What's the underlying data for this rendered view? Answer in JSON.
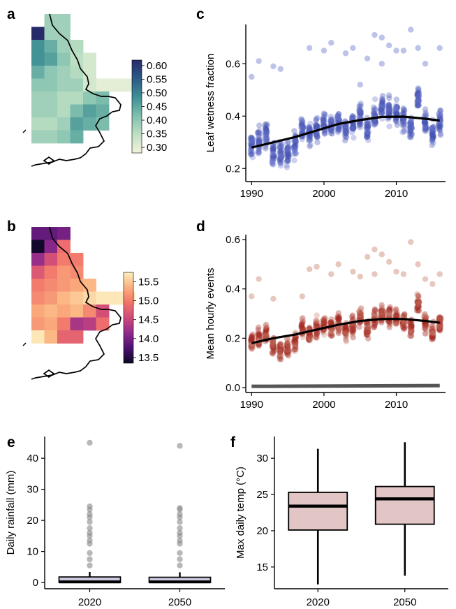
{
  "panel_labels": {
    "a": "a",
    "b": "b",
    "c": "c",
    "d": "d",
    "e": "e",
    "f": "f"
  },
  "colors": {
    "leaf_wetness_points": "#6f7bd0",
    "leaf_wetness_dense": "#4452b3",
    "hourly_points": "#c9846f",
    "hourly_dense": "#a3261f",
    "trend": "#000000",
    "baseline": "#555555",
    "rain_box": "#c9c8df",
    "temp_box": "#e2c6c6",
    "map_outline": "#000000"
  },
  "chart_data": [
    {
      "id": "a",
      "type": "heatmap",
      "title": "",
      "colorbar": {
        "ticks": [
          "0.60",
          "0.55",
          "0.50",
          "0.45",
          "0.40",
          "0.35",
          "0.30"
        ],
        "range": [
          0.28,
          0.62
        ],
        "palette": [
          "#f3f3dc",
          "#bfe0c4",
          "#7fbfae",
          "#3f8f95",
          "#2b5a87",
          "#272b6a"
        ]
      },
      "cells": [
        [
          null,
          0.38,
          0.38,
          null,
          null,
          null,
          null,
          null
        ],
        [
          0.62,
          0.38,
          0.38,
          null,
          null,
          null,
          null,
          null
        ],
        [
          0.48,
          0.44,
          0.38,
          0.36,
          null,
          null,
          null,
          null
        ],
        [
          0.48,
          0.46,
          0.4,
          0.35,
          0.32,
          null,
          null,
          null
        ],
        [
          0.44,
          0.4,
          0.38,
          0.36,
          0.32,
          null,
          null,
          null
        ],
        [
          0.4,
          0.4,
          0.38,
          0.38,
          0.32,
          0.3,
          0.3,
          0.3
        ],
        [
          0.38,
          0.38,
          0.36,
          0.36,
          0.4,
          0.42,
          null,
          null
        ],
        [
          0.38,
          0.38,
          0.36,
          0.42,
          0.46,
          0.44,
          null,
          null
        ],
        [
          0.36,
          0.36,
          0.38,
          0.46,
          0.44,
          0.42,
          null,
          null
        ],
        [
          0.38,
          0.38,
          0.4,
          0.44,
          null,
          null,
          null,
          null
        ]
      ]
    },
    {
      "id": "b",
      "type": "heatmap",
      "title": "",
      "colorbar": {
        "ticks": [
          "15.5",
          "15.0",
          "14.5",
          "14.0",
          "13.5"
        ],
        "range": [
          13.35,
          15.75
        ],
        "palette": [
          "#0c0820",
          "#4a1170",
          "#8f2a8c",
          "#cf4a79",
          "#f1736b",
          "#fbb07d",
          "#fcefc0"
        ]
      },
      "cells": [
        [
          13.9,
          13.9,
          14.0,
          null,
          null,
          null,
          null,
          null
        ],
        [
          13.4,
          14.1,
          14.9,
          null,
          null,
          null,
          null,
          null
        ],
        [
          14.2,
          14.6,
          15.0,
          15.0,
          null,
          null,
          null,
          null
        ],
        [
          14.7,
          15.0,
          15.2,
          15.1,
          null,
          null,
          null,
          null
        ],
        [
          15.0,
          15.1,
          15.2,
          15.3,
          15.4,
          null,
          null,
          null
        ],
        [
          15.1,
          15.2,
          15.4,
          15.5,
          15.6,
          15.7,
          15.7,
          15.7
        ],
        [
          15.3,
          15.4,
          15.3,
          15.4,
          15.1,
          14.6,
          null,
          null
        ],
        [
          15.2,
          15.3,
          15.0,
          14.3,
          14.4,
          14.9,
          null,
          null
        ],
        [
          15.7,
          15.4,
          14.8,
          14.8,
          null,
          null,
          null,
          null
        ]
      ]
    },
    {
      "id": "c",
      "type": "scatter",
      "ylabel": "Leaf wetness fraction",
      "xlabel": "",
      "x_ticks": [
        "1990",
        "2000",
        "2010"
      ],
      "y_ticks": [
        "0.2",
        "0.4",
        "0.6"
      ],
      "xlim": [
        1989.2,
        2016.8
      ],
      "ylim": [
        0.15,
        0.75
      ],
      "trend": {
        "x": [
          1990,
          1993,
          1996,
          1999,
          2002,
          2005,
          2008,
          2011,
          2014,
          2016
        ],
        "y": [
          0.28,
          0.3,
          0.32,
          0.345,
          0.37,
          0.385,
          0.397,
          0.398,
          0.39,
          0.383
        ]
      },
      "year_means": [
        0.29,
        0.31,
        0.33,
        0.26,
        0.25,
        0.26,
        0.29,
        0.36,
        0.33,
        0.35,
        0.37,
        0.36,
        0.38,
        0.35,
        0.37,
        0.4,
        0.35,
        0.4,
        0.43,
        0.42,
        0.41,
        0.39,
        0.36,
        0.47,
        0.38,
        0.34,
        0.38
      ],
      "spread": 0.07,
      "outliers": [
        [
          1990,
          0.55
        ],
        [
          1991,
          0.61
        ],
        [
          1993,
          0.59
        ],
        [
          1994,
          0.58
        ],
        [
          1998,
          0.66
        ],
        [
          2000,
          0.65
        ],
        [
          2001,
          0.68
        ],
        [
          2003,
          0.64
        ],
        [
          2004,
          0.66
        ],
        [
          2005,
          0.52
        ],
        [
          2006,
          0.62
        ],
        [
          2007,
          0.71
        ],
        [
          2008,
          0.7
        ],
        [
          2008,
          0.6
        ],
        [
          2009,
          0.67
        ],
        [
          2010,
          0.65
        ],
        [
          2011,
          0.65
        ],
        [
          2012,
          0.73
        ],
        [
          2013,
          0.66
        ],
        [
          2014,
          0.6
        ],
        [
          2016,
          0.66
        ]
      ]
    },
    {
      "id": "d",
      "type": "scatter",
      "ylabel": "Mean hourly events",
      "xlabel": "",
      "x_ticks": [
        "1990",
        "2000",
        "2010"
      ],
      "y_ticks": [
        "0.0",
        "0.2",
        "0.4",
        "0.6"
      ],
      "xlim": [
        1989.2,
        2016.8
      ],
      "ylim": [
        -0.02,
        0.62
      ],
      "trend": {
        "x": [
          1990,
          1993,
          1996,
          1999,
          2002,
          2005,
          2008,
          2011,
          2014,
          2016
        ],
        "y": [
          0.18,
          0.2,
          0.215,
          0.235,
          0.255,
          0.27,
          0.278,
          0.278,
          0.27,
          0.263
        ]
      },
      "baseline": {
        "x": [
          1990,
          2016
        ],
        "y": [
          0.005,
          0.008
        ]
      },
      "year_means": [
        0.18,
        0.2,
        0.22,
        0.17,
        0.15,
        0.16,
        0.18,
        0.24,
        0.22,
        0.24,
        0.25,
        0.24,
        0.26,
        0.23,
        0.25,
        0.28,
        0.24,
        0.28,
        0.3,
        0.29,
        0.28,
        0.27,
        0.24,
        0.34,
        0.26,
        0.22,
        0.26
      ],
      "spread": 0.06,
      "outliers": [
        [
          1990,
          0.37
        ],
        [
          1991,
          0.44
        ],
        [
          1993,
          0.36
        ],
        [
          1997,
          0.37
        ],
        [
          1998,
          0.48
        ],
        [
          1999,
          0.49
        ],
        [
          2001,
          0.46
        ],
        [
          2002,
          0.5
        ],
        [
          2004,
          0.47
        ],
        [
          2005,
          0.45
        ],
        [
          2006,
          0.53
        ],
        [
          2007,
          0.56
        ],
        [
          2007,
          0.46
        ],
        [
          2008,
          0.54
        ],
        [
          2009,
          0.51
        ],
        [
          2010,
          0.47
        ],
        [
          2011,
          0.46
        ],
        [
          2012,
          0.59
        ],
        [
          2013,
          0.5
        ],
        [
          2014,
          0.44
        ],
        [
          2015,
          0.42
        ],
        [
          2016,
          0.46
        ]
      ]
    },
    {
      "id": "e",
      "type": "box",
      "ylabel": "Daily rainfall (mm)",
      "xlabel": "",
      "categories": [
        "2020",
        "2050"
      ],
      "y_ticks": [
        "0",
        "10",
        "20",
        "30",
        "40"
      ],
      "ylim": [
        -2,
        47
      ],
      "boxes": [
        {
          "min": 0,
          "q1": 0,
          "median": 0.2,
          "q3": 1.8,
          "max": 3.4,
          "outliers": [
            5.5,
            7.5,
            9.5,
            12.5,
            13.5,
            15,
            16,
            17.5,
            19.5,
            21,
            22,
            23.5,
            24.5,
            45
          ]
        },
        {
          "min": 0,
          "q1": 0,
          "median": 0.2,
          "q3": 1.7,
          "max": 3.3,
          "outliers": [
            5.5,
            7.5,
            9.5,
            12.5,
            13.5,
            15,
            16,
            17.5,
            19.5,
            21,
            22,
            23.5,
            24,
            44
          ]
        }
      ]
    },
    {
      "id": "f",
      "type": "box",
      "ylabel": "Max daily temp (°C)",
      "xlabel": "",
      "categories": [
        "2020",
        "2050"
      ],
      "y_ticks": [
        "15",
        "20",
        "25",
        "30"
      ],
      "ylim": [
        12,
        33
      ],
      "boxes": [
        {
          "min": 12.6,
          "q1": 20.1,
          "median": 23.4,
          "q3": 25.3,
          "max": 31.3
        },
        {
          "min": 13.8,
          "q1": 20.9,
          "median": 24.4,
          "q3": 26.1,
          "max": 32.2
        }
      ]
    }
  ]
}
